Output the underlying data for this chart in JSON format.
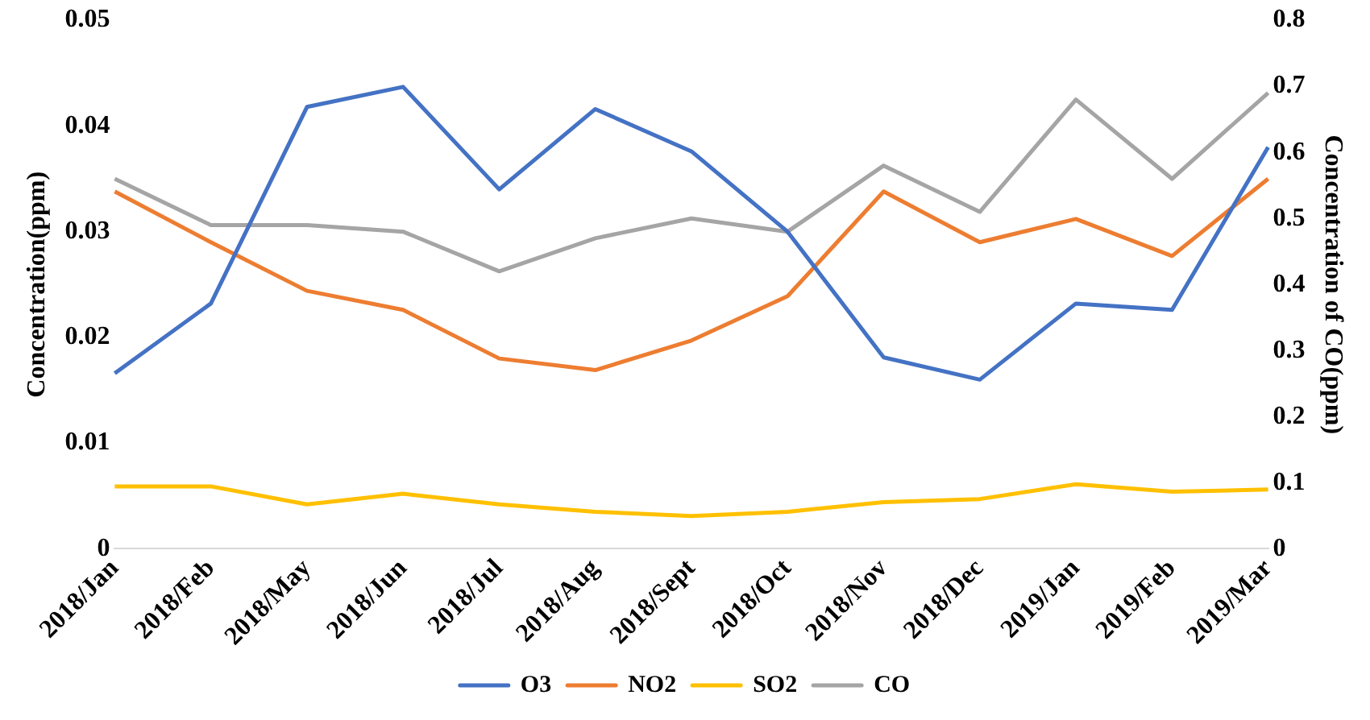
{
  "chart_data": {
    "type": "line",
    "categories": [
      "2018/Jan",
      "2018/Feb",
      "2018/May",
      "2018/Jun",
      "2018/Jul",
      "2018/Aug",
      "2018/Sept",
      "2018/Oct",
      "2018/Nov",
      "2018/Dec",
      "2019/Jan",
      "2019/Feb",
      "2019/Mar"
    ],
    "series": [
      {
        "name": "O3",
        "color": "#4472c4",
        "values": [
          0.0166,
          0.0232,
          0.0418,
          0.0437,
          0.034,
          0.0416,
          0.0376,
          0.03,
          0.0181,
          0.016,
          0.0232,
          0.0226,
          0.038
        ]
      },
      {
        "name": "NO2",
        "color": "#ed7d31",
        "values": [
          0.0338,
          0.029,
          0.0244,
          0.0226,
          0.018,
          0.0169,
          0.0197,
          0.0239,
          0.0338,
          0.029,
          0.0312,
          0.0277,
          0.035
        ]
      },
      {
        "name": "SO2",
        "color": "#ffc000",
        "values": [
          0.0059,
          0.0059,
          0.0042,
          0.0052,
          0.0042,
          0.0035,
          0.0031,
          0.0035,
          0.0044,
          0.0047,
          0.0061,
          0.0054,
          0.0056
        ]
      },
      {
        "name": "CO",
        "color": "#a5a5a5",
        "axis": "y2",
        "values": [
          0.56,
          0.49,
          0.49,
          0.48,
          0.42,
          0.47,
          0.5,
          0.48,
          0.58,
          0.51,
          0.68,
          0.56,
          0.69
        ]
      }
    ],
    "ylabel": "Concentration(ppm)",
    "y2label": "Concentration of CO(ppm)",
    "ylim": [
      0,
      0.05
    ],
    "yticks": [
      0,
      0.01,
      0.02,
      0.03,
      0.04,
      0.05
    ],
    "y2lim": [
      0,
      0.8
    ],
    "y2ticks": [
      0,
      0.1,
      0.2,
      0.3,
      0.4,
      0.5,
      0.6,
      0.7,
      0.8
    ],
    "grid": false,
    "legend": "bottom",
    "marker": "none",
    "line_style": "solid"
  }
}
